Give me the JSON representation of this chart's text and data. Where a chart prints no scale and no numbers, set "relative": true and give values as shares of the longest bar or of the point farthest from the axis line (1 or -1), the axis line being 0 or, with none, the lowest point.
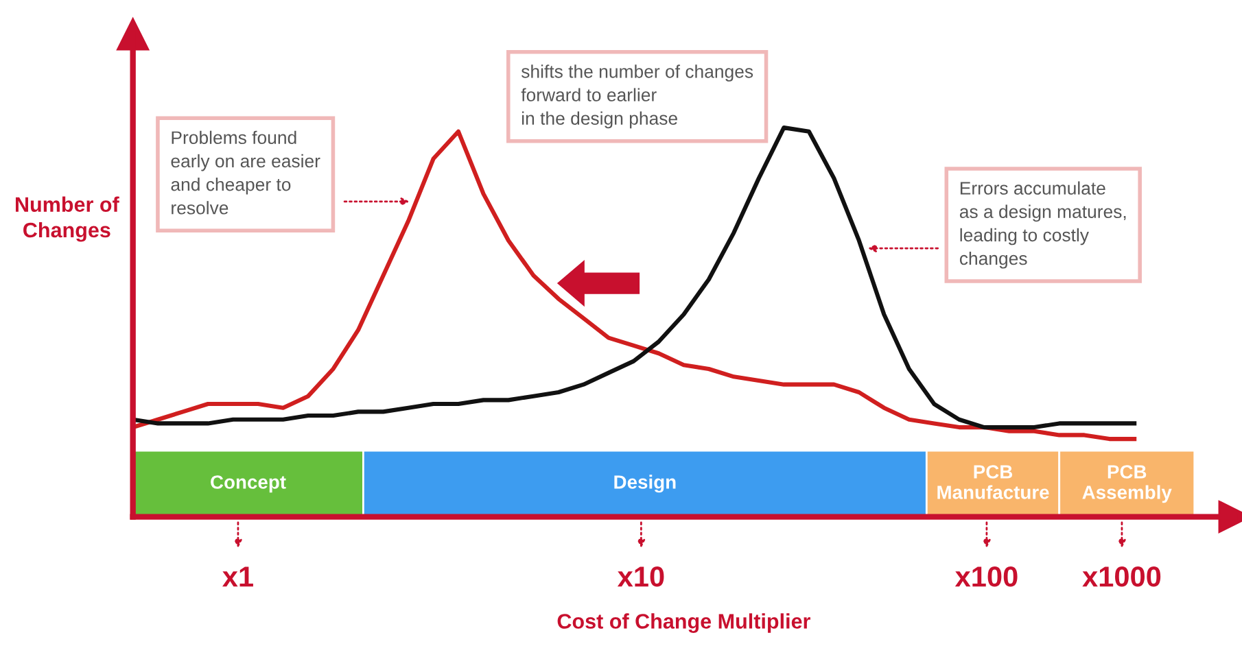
{
  "chart_data": {
    "type": "line",
    "relative": true,
    "xlabel": "Cost of Change Multiplier",
    "ylabel": "Number of Changes",
    "categories": [
      null,
      null,
      null,
      null,
      null,
      null,
      null,
      null,
      null,
      null,
      null,
      null,
      null,
      null,
      null,
      null,
      null,
      null,
      null,
      null,
      null,
      null,
      null,
      null,
      null,
      null,
      null,
      null,
      null,
      null,
      null,
      null,
      null,
      null,
      null,
      null,
      null,
      null,
      null,
      null,
      null
    ],
    "series": [
      {
        "color": "#d01f1f",
        "values": [
          0.23,
          0.25,
          0.27,
          0.29,
          0.29,
          0.29,
          0.28,
          0.31,
          0.38,
          0.48,
          0.62,
          0.76,
          0.92,
          0.99,
          0.83,
          0.71,
          0.62,
          0.56,
          0.51,
          0.46,
          0.44,
          0.42,
          0.39,
          0.38,
          0.36,
          0.35,
          0.34,
          0.34,
          0.34,
          0.32,
          0.28,
          0.25,
          0.24,
          0.23,
          0.23,
          0.22,
          0.22,
          0.21,
          0.21,
          0.2,
          0.2
        ]
      },
      {
        "color": "#111111",
        "values": [
          0.25,
          0.24,
          0.24,
          0.24,
          0.25,
          0.25,
          0.25,
          0.26,
          0.26,
          0.27,
          0.27,
          0.28,
          0.29,
          0.29,
          0.3,
          0.3,
          0.31,
          0.32,
          0.34,
          0.37,
          0.4,
          0.45,
          0.52,
          0.61,
          0.73,
          0.87,
          1.0,
          0.99,
          0.87,
          0.71,
          0.52,
          0.38,
          0.29,
          0.25,
          0.23,
          0.23,
          0.23,
          0.24,
          0.24,
          0.24,
          0.24
        ]
      }
    ],
    "annotations": [
      "Problems found\nearly on are easier\nand cheaper to\nresolve",
      "shifts the number of changes\nforward to earlier\nin the design phase",
      "Errors accumulate\nas a design matures,\nleading to costly\nchanges",
      "Concept",
      "Design",
      "PCB\nManufacture",
      "PCB\nAssembly",
      "x1",
      "x10",
      "x100",
      "x1000"
    ],
    "legend": false,
    "marker": "none",
    "line_style": "solid"
  }
}
